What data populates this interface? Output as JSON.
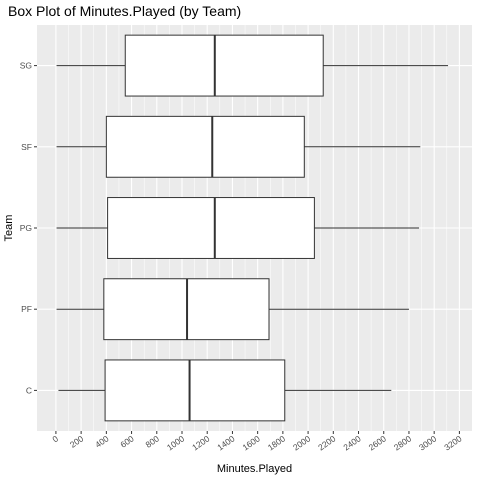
{
  "chart_data": {
    "type": "boxplot",
    "orientation": "horizontal",
    "title": "Box Plot of Minutes.Played (by Team)",
    "xlabel": "Minutes.Played",
    "ylabel": "Team",
    "xlim": [
      -150,
      3300
    ],
    "x_ticks": [
      0,
      200,
      400,
      600,
      800,
      1000,
      1200,
      1400,
      1600,
      1800,
      2000,
      2200,
      2400,
      2600,
      2800,
      3000,
      3200
    ],
    "categories": [
      "C",
      "PF",
      "PG",
      "SF",
      "SG"
    ],
    "boxes": [
      {
        "category": "C",
        "min": 20,
        "q1": 390,
        "median": 1060,
        "q3": 1815,
        "max": 2660
      },
      {
        "category": "PF",
        "min": 5,
        "q1": 380,
        "median": 1040,
        "q3": 1690,
        "max": 2800
      },
      {
        "category": "PG",
        "min": 5,
        "q1": 410,
        "median": 1260,
        "q3": 2050,
        "max": 2880
      },
      {
        "category": "SF",
        "min": 5,
        "q1": 400,
        "median": 1240,
        "q3": 1970,
        "max": 2890
      },
      {
        "category": "SG",
        "min": 5,
        "q1": 550,
        "median": 1260,
        "q3": 2120,
        "max": 3110
      }
    ],
    "grid": true,
    "colors": {
      "panel": "#ebebeb",
      "grid": "#ffffff",
      "box_fill": "#ffffff",
      "box_line": "#333333"
    }
  }
}
